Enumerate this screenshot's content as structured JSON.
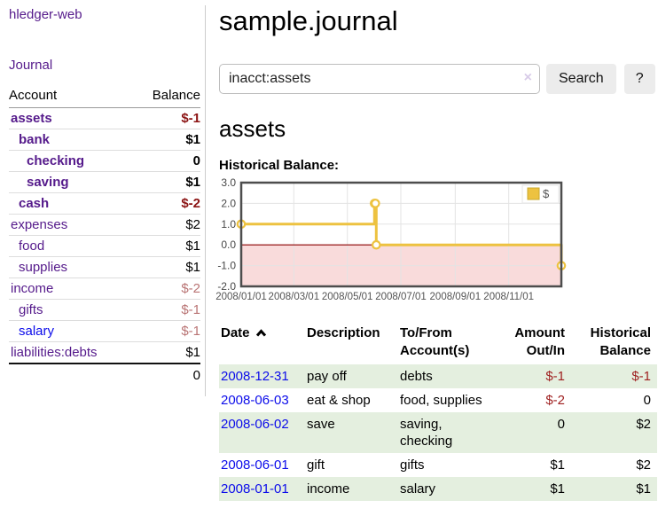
{
  "app": {
    "title": "hledger-web"
  },
  "sidebar": {
    "journal_link": "Journal",
    "accounts_header": {
      "account": "Account",
      "balance": "Balance"
    },
    "accounts": [
      {
        "name": "assets",
        "balance": "$-1",
        "indent": 0,
        "bold": true,
        "link_color": "purple"
      },
      {
        "name": "bank",
        "balance": "$1",
        "indent": 1,
        "bold": true,
        "link_color": "purple"
      },
      {
        "name": "checking",
        "balance": "0",
        "indent": 2,
        "bold": true,
        "link_color": "purple"
      },
      {
        "name": "saving",
        "balance": "$1",
        "indent": 2,
        "bold": true,
        "link_color": "purple"
      },
      {
        "name": "cash",
        "balance": "$-2",
        "indent": 1,
        "bold": true,
        "link_color": "purple"
      },
      {
        "name": "expenses",
        "balance": "$2",
        "indent": 0,
        "bold": false,
        "link_color": "purple"
      },
      {
        "name": "food",
        "balance": "$1",
        "indent": 1,
        "bold": false,
        "link_color": "purple"
      },
      {
        "name": "supplies",
        "balance": "$1",
        "indent": 1,
        "bold": false,
        "link_color": "purple"
      },
      {
        "name": "income",
        "balance": "$-2",
        "indent": 0,
        "bold": false,
        "link_color": "purple"
      },
      {
        "name": "gifts",
        "balance": "$-1",
        "indent": 1,
        "bold": false,
        "link_color": "purple"
      },
      {
        "name": "salary",
        "balance": "$-1",
        "indent": 1,
        "bold": false,
        "link_color": "blue"
      },
      {
        "name": "liabilities:debts",
        "balance": "$1",
        "indent": 0,
        "bold": false,
        "link_color": "purple"
      }
    ],
    "total": "0"
  },
  "header": {
    "title": "sample.journal"
  },
  "search": {
    "value": "inacct:assets",
    "clear_icon": "×",
    "button": "Search",
    "help_button": "?"
  },
  "account_page": {
    "heading": "assets",
    "chart_title": "Historical Balance:"
  },
  "chart_data": {
    "type": "line",
    "step": true,
    "title": "Historical Balance:",
    "series": [
      {
        "name": "$",
        "color": "#edc240",
        "points": [
          [
            "2008-01-01",
            1
          ],
          [
            "2008-06-01",
            2
          ],
          [
            "2008-06-02",
            2
          ],
          [
            "2008-06-03",
            0
          ],
          [
            "2008-12-31",
            -1
          ]
        ]
      }
    ],
    "xlim": [
      "2008-01-01",
      "2008-12-31"
    ],
    "ylim": [
      -2,
      3
    ],
    "xticks": [
      "2008/01/01",
      "2008/03/01",
      "2008/05/01",
      "2008/07/01",
      "2008/09/01",
      "2008/11/01"
    ],
    "yticks": [
      3,
      2,
      1,
      0,
      -1,
      -2
    ],
    "negative_region_color": "#f9dbdb",
    "zero_line_color": "#8e0000",
    "grid": true,
    "legend": {
      "label": "$",
      "position": "top-right"
    }
  },
  "register": {
    "headers": [
      "Date",
      "Description",
      "To/From\nAccount(s)",
      "Amount\nOut/In",
      "Historical\nBalance"
    ],
    "sort_icon": "chevron-up",
    "rows": [
      {
        "date": "2008-12-31",
        "description": "pay off",
        "accounts": "debts",
        "amount": "$-1",
        "balance": "$-1"
      },
      {
        "date": "2008-06-03",
        "description": "eat & shop",
        "accounts": "food, supplies",
        "amount": "$-2",
        "balance": "0"
      },
      {
        "date": "2008-06-02",
        "description": "save",
        "accounts": "saving,\nchecking",
        "amount": "0",
        "balance": "$2"
      },
      {
        "date": "2008-06-01",
        "description": "gift",
        "accounts": "gifts",
        "amount": "$1",
        "balance": "$2"
      },
      {
        "date": "2008-01-01",
        "description": "income",
        "accounts": "salary",
        "amount": "$1",
        "balance": "$1"
      }
    ]
  }
}
